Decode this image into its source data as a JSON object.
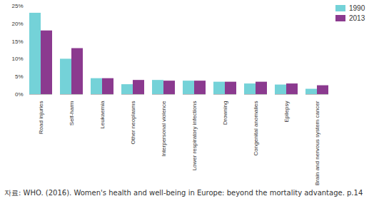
{
  "chart_data": {
    "type": "bar",
    "categories": [
      "Road injuries",
      "Self-harm",
      "Leukaemia",
      "Other neoplasms",
      "Interpersonal violence",
      "Lower respiratory infections",
      "Drowning",
      "Congenital anomalies",
      "Epilepsy",
      "Brain and nervous system cancer"
    ],
    "series": [
      {
        "name": "1990",
        "color": "#74d2d8",
        "values": [
          23,
          10,
          4.5,
          2.8,
          4,
          3.8,
          3.5,
          3,
          2.7,
          1.5
        ]
      },
      {
        "name": "2013",
        "color": "#8b3a8f",
        "values": [
          18,
          13,
          4.5,
          4,
          3.8,
          3.8,
          3.5,
          3.5,
          3,
          2.5
        ]
      }
    ],
    "ylim": [
      0,
      25
    ],
    "yticks": [
      {
        "value": 0,
        "label": "0%"
      },
      {
        "value": 5,
        "label": "5%"
      },
      {
        "value": 10,
        "label": "10%"
      },
      {
        "value": 15,
        "label": "15%"
      },
      {
        "value": 20,
        "label": "20%"
      },
      {
        "value": 25,
        "label": "25%"
      }
    ],
    "grid": false,
    "legend": "top-right",
    "caption": "자료: WHO. (2016). Women's health and well-being in Europe: beyond the mortality advantage. p.14"
  }
}
